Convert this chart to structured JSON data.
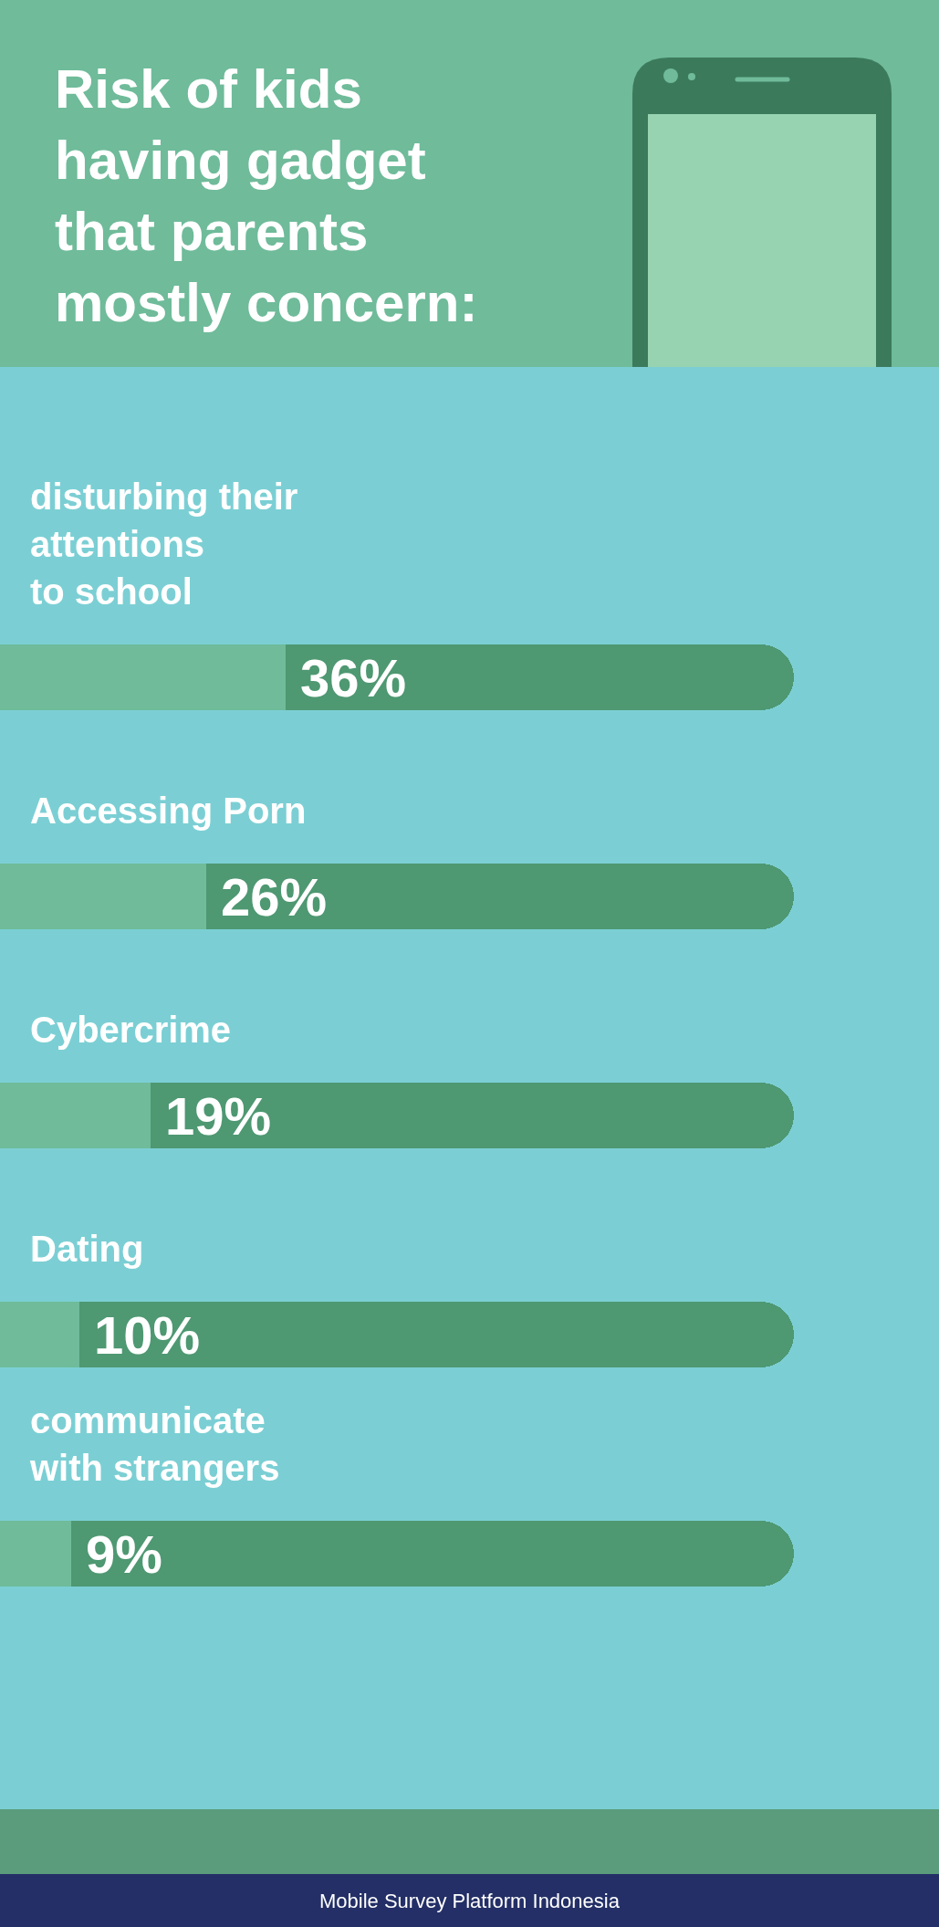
{
  "chart_data": {
    "type": "bar",
    "orientation": "horizontal",
    "stacked": true,
    "title": "Risk of kids\nhaving gadget\nthat parents\nmostly concern:",
    "categories": [
      "disturbing their\nattentions\nto school",
      "Accessing Porn",
      "Cybercrime",
      "Dating",
      "communicate\nwith strangers"
    ],
    "series": [
      {
        "color": "#6fbb9a",
        "values": [
          36,
          26,
          19,
          10,
          9
        ],
        "value_labels": [
          "36%",
          "26%",
          "19%",
          "10%",
          "9%"
        ]
      },
      {
        "color": "#4e9872",
        "values": [
          64,
          74,
          81,
          90,
          91
        ]
      }
    ],
    "tick_labels": "y",
    "annotations": [
      "Mobile Survey Platform Indonesia"
    ]
  }
}
